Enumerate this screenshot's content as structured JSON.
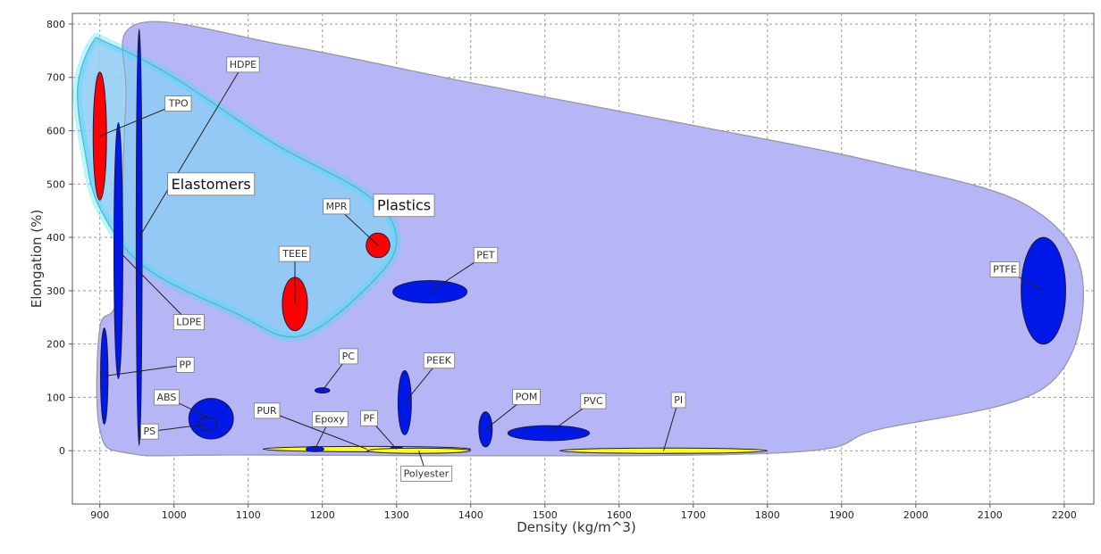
{
  "chart_data": {
    "type": "scatter",
    "subtype": "material-property-bubble",
    "xlabel": "Density (kg/m^3)",
    "ylabel": "Elongation (%)",
    "xlim": [
      863,
      2240
    ],
    "ylim": [
      -100,
      820
    ],
    "x_ticks": [
      900,
      1000,
      1100,
      1200,
      1300,
      1400,
      1500,
      1600,
      1700,
      1800,
      1900,
      2000,
      2100,
      2200
    ],
    "y_ticks": [
      0,
      100,
      200,
      300,
      400,
      500,
      600,
      700,
      800
    ],
    "grid": true,
    "families": [
      {
        "name": "Plastics",
        "color": "#b6b6f6",
        "label_at": [
          1310,
          460
        ],
        "outline": [
          [
            950,
            800
          ],
          [
            1150,
            760
          ],
          [
            1400,
            690
          ],
          [
            1700,
            610
          ],
          [
            1950,
            540
          ],
          [
            2150,
            460
          ],
          [
            2225,
            320
          ],
          [
            2175,
            120
          ],
          [
            1950,
            40
          ],
          [
            1800,
            -5
          ],
          [
            1100,
            -8
          ],
          [
            940,
            -5
          ],
          [
            900,
            40
          ],
          [
            900,
            230
          ],
          [
            925,
            300
          ],
          [
            935,
            650
          ],
          [
            950,
            800
          ]
        ]
      },
      {
        "name": "Elastomers",
        "color": "#8ecdf6",
        "edge_color": "#2fe6ff",
        "label_at": [
          1050,
          500
        ],
        "outline": [
          [
            890,
            765
          ],
          [
            910,
            765
          ],
          [
            1000,
            700
          ],
          [
            1130,
            580
          ],
          [
            1260,
            480
          ],
          [
            1300,
            400
          ],
          [
            1270,
            320
          ],
          [
            1170,
            215
          ],
          [
            1080,
            260
          ],
          [
            960,
            345
          ],
          [
            900,
            455
          ],
          [
            880,
            560
          ],
          [
            870,
            680
          ],
          [
            890,
            765
          ]
        ]
      }
    ],
    "materials": [
      {
        "name": "PTFE",
        "family": "Plastics",
        "x": 2172,
        "y": 300,
        "dx": 30,
        "dy": 100,
        "color": "#0018e8",
        "label_at": [
          2120,
          340
        ]
      },
      {
        "name": "HDPE",
        "family": "Plastics",
        "x": 953,
        "y": 400,
        "dx": 4,
        "dy": 390,
        "color": "#0018e8",
        "label_at": [
          1093,
          724
        ]
      },
      {
        "name": "LDPE",
        "family": "Plastics",
        "x": 925,
        "y": 375,
        "dx": 6,
        "dy": 240,
        "color": "#0018e8",
        "label_at": [
          1020,
          241
        ]
      },
      {
        "name": "PP",
        "family": "Plastics",
        "x": 906,
        "y": 140,
        "dx": 5,
        "dy": 90,
        "color": "#0018e8",
        "label_at": [
          1015,
          161
        ]
      },
      {
        "name": "ABS",
        "family": "Plastics",
        "x": 1050,
        "y": 60,
        "dx": 30,
        "dy": 38,
        "color": "#0018e8",
        "label_at": [
          990,
          100
        ]
      },
      {
        "name": "PS",
        "family": "Plastics",
        "x": 1045,
        "y": 50,
        "dx": 13,
        "dy": 12,
        "color": "#0018e8",
        "label_at": [
          967,
          36
        ]
      },
      {
        "name": "PC",
        "family": "Plastics",
        "x": 1200,
        "y": 113,
        "dx": 10,
        "dy": 5,
        "color": "#0018e8",
        "label_at": [
          1235,
          177
        ]
      },
      {
        "name": "PEEK",
        "family": "Plastics",
        "x": 1311,
        "y": 90,
        "dx": 9,
        "dy": 60,
        "color": "#0018e8",
        "label_at": [
          1357,
          169
        ]
      },
      {
        "name": "POM",
        "family": "Plastics",
        "x": 1420,
        "y": 40,
        "dx": 9,
        "dy": 33,
        "color": "#0018e8",
        "label_at": [
          1475,
          101
        ]
      },
      {
        "name": "PVC",
        "family": "Plastics",
        "x": 1505,
        "y": 33,
        "dx": 55,
        "dy": 14,
        "color": "#0018e8",
        "label_at": [
          1565,
          93
        ]
      },
      {
        "name": "PET",
        "family": "Plastics",
        "x": 1345,
        "y": 298,
        "dx": 50,
        "dy": 21,
        "color": "#0018e8",
        "label_at": [
          1420,
          367
        ]
      },
      {
        "name": "MPR",
        "family": "Elastomers",
        "x": 1275,
        "y": 385,
        "dx": 16,
        "dy": 23,
        "color": "#ff0000",
        "label_at": [
          1219,
          458
        ]
      },
      {
        "name": "TEEE",
        "family": "Elastomers",
        "x": 1163,
        "y": 275,
        "dx": 17,
        "dy": 50,
        "color": "#ff0000",
        "label_at": [
          1163,
          369
        ]
      },
      {
        "name": "TPO",
        "family": "Elastomers",
        "x": 900,
        "y": 590,
        "dx": 9,
        "dy": 120,
        "color": "#ff0000",
        "label_at": [
          1006,
          651
        ]
      },
      {
        "name": "PUR",
        "family": "Plastics",
        "x": 1260,
        "y": 3,
        "dx": 140,
        "dy": 5,
        "color": "#ffff00",
        "label_at": [
          1125,
          75
        ]
      },
      {
        "name": "Epoxy",
        "family": "Plastics",
        "x": 1190,
        "y": 3,
        "dx": 12,
        "dy": 5,
        "color": "#0018e8",
        "label_at": [
          1210,
          59
        ]
      },
      {
        "name": "PF",
        "family": "Plastics",
        "x": 1300,
        "y": 3,
        "dx": 9,
        "dy": 5,
        "color": "#0018e8",
        "label_at": [
          1263,
          61
        ]
      },
      {
        "name": "Polyester",
        "family": "Plastics",
        "x": 1330,
        "y": 0,
        "dx": 70,
        "dy": 4,
        "color": "#ffff00",
        "label_at": [
          1340,
          -43
        ]
      },
      {
        "name": "PI",
        "family": "Plastics",
        "x": 1660,
        "y": 0,
        "dx": 140,
        "dy": 4,
        "color": "#ffff00",
        "label_at": [
          1680,
          95
        ]
      }
    ]
  }
}
